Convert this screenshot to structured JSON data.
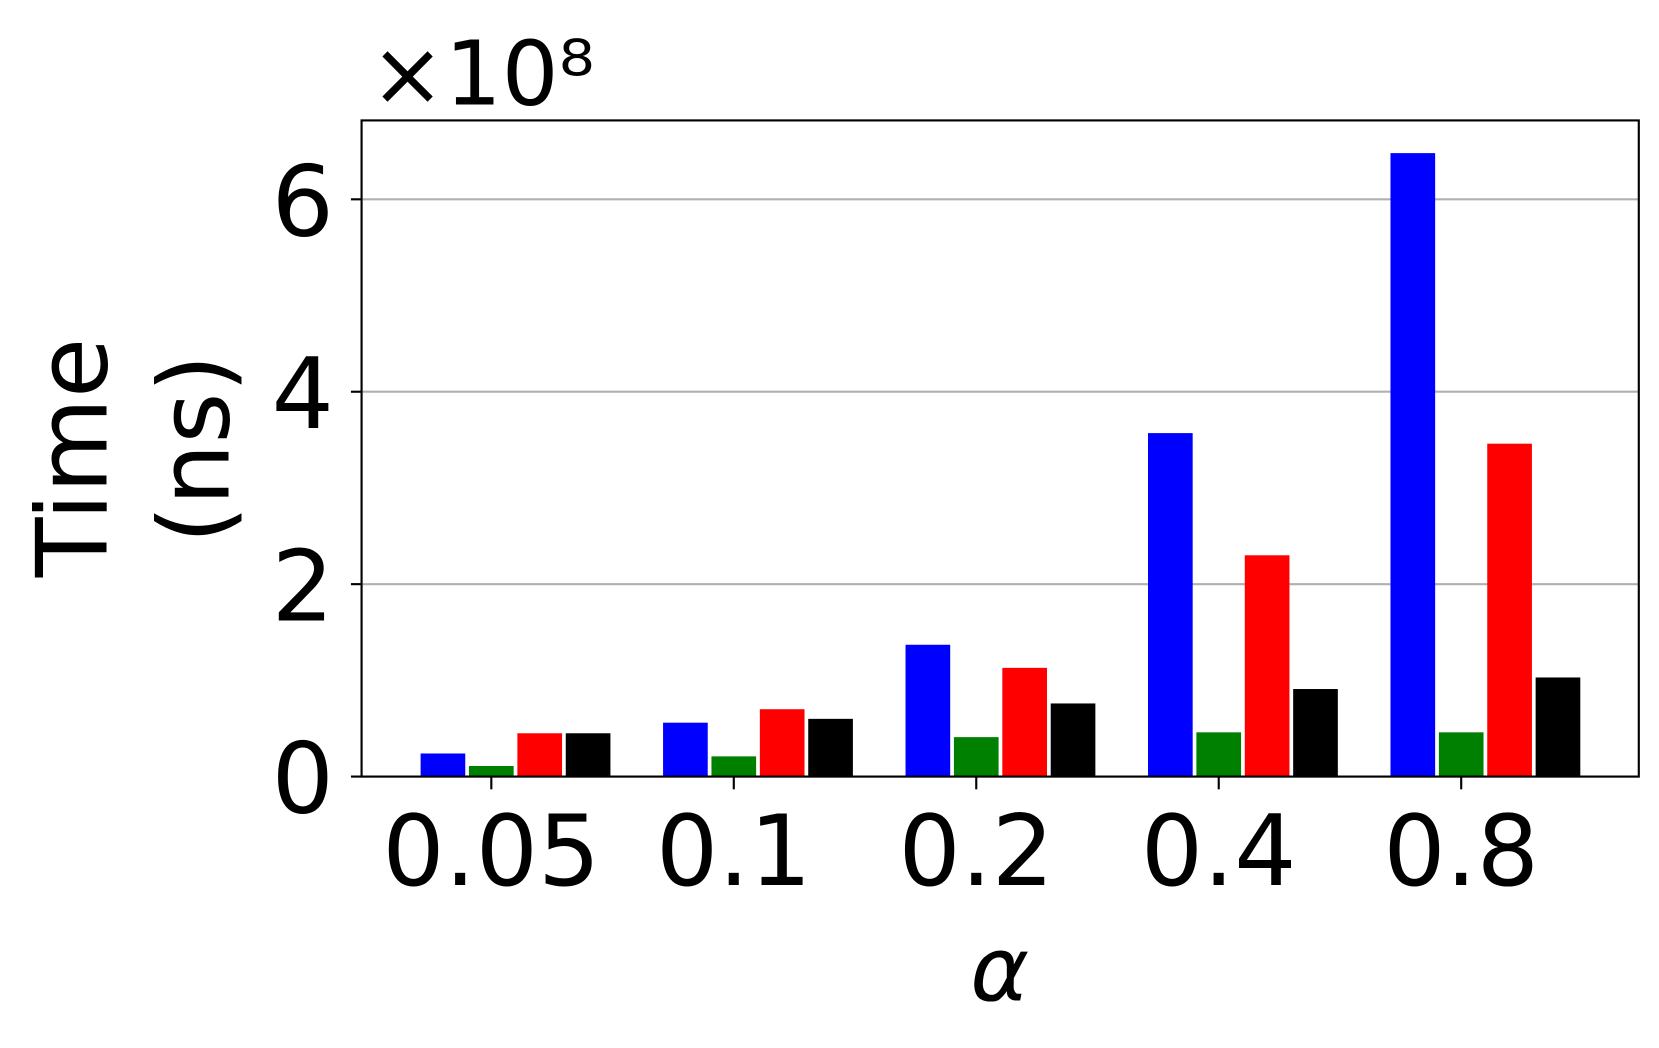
{
  "chart_data": {
    "type": "bar",
    "y_offset_text": "×10⁸",
    "ylabel": [
      "Time",
      "(ns)"
    ],
    "xlabel": "α",
    "categories": [
      "0.05",
      "0.1",
      "0.2",
      "0.4",
      "0.8"
    ],
    "series": [
      {
        "color": "#0000ff",
        "values": [
          0.24,
          0.56,
          1.37,
          3.57,
          6.48
        ]
      },
      {
        "color": "#008000",
        "values": [
          0.11,
          0.21,
          0.41,
          0.46,
          0.46
        ]
      },
      {
        "color": "#ff0000",
        "values": [
          0.45,
          0.7,
          1.13,
          2.3,
          3.46
        ]
      },
      {
        "color": "#000000",
        "values": [
          0.45,
          0.6,
          0.76,
          0.91,
          1.03
        ]
      }
    ],
    "ylim": [
      0,
      6.82
    ],
    "yticks": [
      0,
      2,
      4,
      6
    ],
    "grid": true
  }
}
